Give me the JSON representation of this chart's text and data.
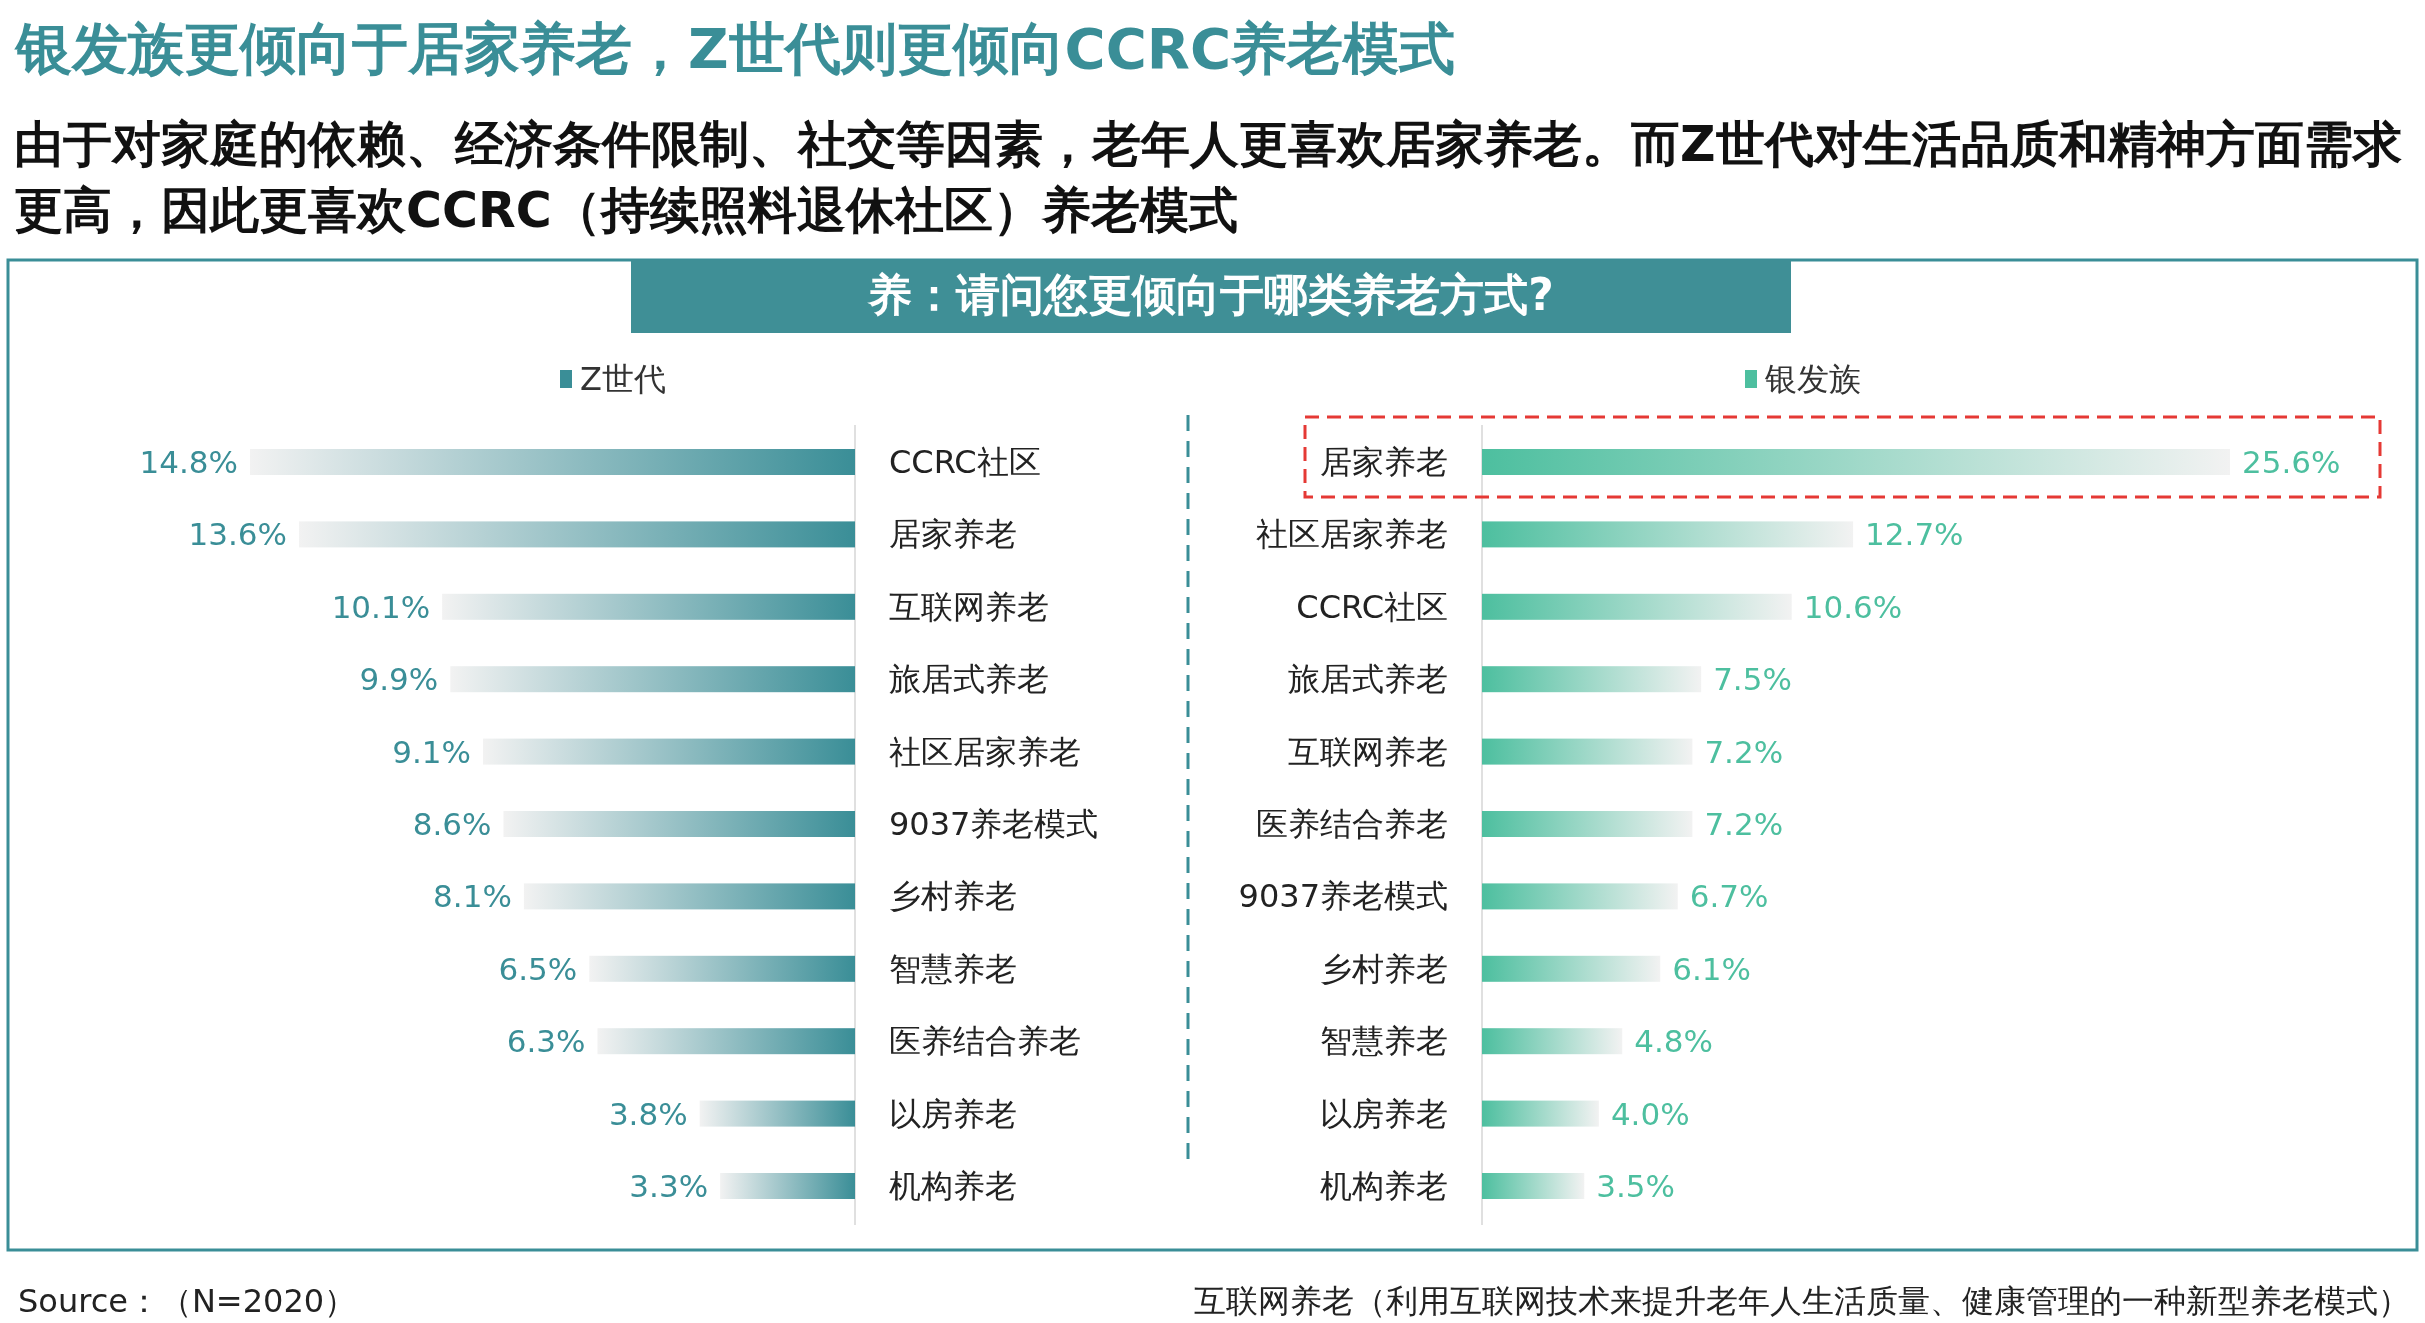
{
  "chart_data": [
    {
      "type": "bar",
      "orientation": "horizontal",
      "title": "银发族更倾向于居家养老，Z世代则更倾向CCRC养老模式",
      "subtitle": "由于对家庭的依赖、经济条件限制、社交等因素，老年人更喜欢居家养老。而Z世代对生活品质和精神方面需求更高，因此更喜欢CCRC（持续照料退休社区）养老模式",
      "annotations": [
        "养：请问您更倾向于哪类养老方式?",
        "Source：（N=2020）"
      ],
      "categories": [
        "CCRC社区",
        "居家养老",
        "互联网养老",
        "旅居式养老",
        "社区居家养老",
        "9037养老模式",
        "乡村养老",
        "智慧养老",
        "医养结合养老",
        "以房养老",
        "机构养老"
      ],
      "series": [
        {
          "name": "Z世代",
          "color": "#3a8e97",
          "values": [
            14.8,
            13.6,
            10.1,
            9.9,
            9.1,
            8.6,
            8.1,
            6.5,
            6.3,
            3.8,
            3.3
          ],
          "value_labels": [
            "14.8%",
            "13.6%",
            "10.1%",
            "9.9%",
            "9.1%",
            "8.6%",
            "8.1%",
            "6.5%",
            "6.3%",
            "3.8%",
            "3.3%"
          ]
        }
      ],
      "tick_labels": false,
      "legend": "top"
    },
    {
      "type": "bar",
      "orientation": "horizontal",
      "annotations": [
        "互联网养老（利用互联网技术来提升老年人生活质量、健康管理的一种新型养老模式）"
      ],
      "categories": [
        "居家养老",
        "社区居家养老",
        "CCRC社区",
        "旅居式养老",
        "互联网养老",
        "医养结合养老",
        "9037养老模式",
        "乡村养老",
        "智慧养老",
        "以房养老",
        "机构养老"
      ],
      "series": [
        {
          "name": "银发族",
          "color": "#4dbf9f",
          "values": [
            25.6,
            12.7,
            10.6,
            7.5,
            7.2,
            7.2,
            6.7,
            6.1,
            4.8,
            4.0,
            3.5
          ],
          "value_labels": [
            "25.6%",
            "12.7%",
            "10.6%",
            "7.5%",
            "7.2%",
            "7.2%",
            "6.7%",
            "6.1%",
            "4.8%",
            "4.0%",
            "3.5%"
          ]
        }
      ],
      "tick_labels": false,
      "legend": "top"
    }
  ]
}
